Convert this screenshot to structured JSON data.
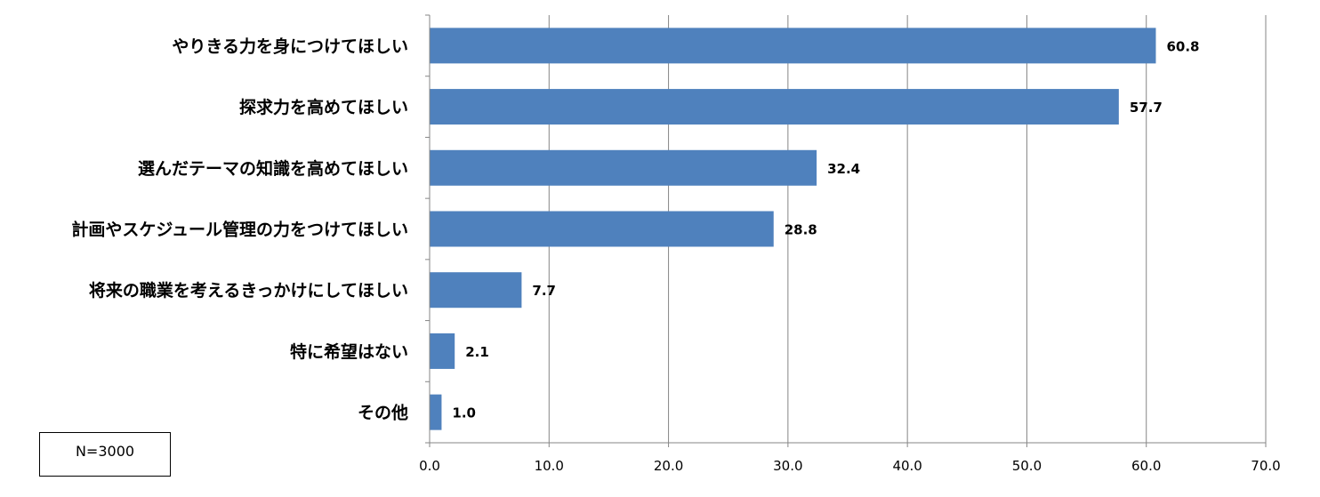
{
  "chart_data": {
    "type": "bar",
    "orientation": "horizontal",
    "categories": [
      "やりきる力を身につけてほしい",
      "探求力を高めてほしい",
      "選んだテーマの知識を高めてほしい",
      "計画やスケジュール管理の力をつけてほしい",
      "将来の職業を考えるきっかけにしてほしい",
      "特に希望はない",
      "その他"
    ],
    "values": [
      60.8,
      57.7,
      32.4,
      28.8,
      7.7,
      2.1,
      1.0
    ],
    "value_labels": [
      "60.8",
      "57.7",
      "32.4",
      "28.8",
      "7.7",
      "2.1",
      "1.0"
    ],
    "xlim": [
      0,
      70
    ],
    "xticks": [
      "0.0",
      "10.0",
      "20.0",
      "30.0",
      "40.0",
      "50.0",
      "60.0",
      "70.0"
    ],
    "grid": "vertical",
    "bar_color": "#4f81bd",
    "grid_color": "#868686",
    "annotation": "N=3000"
  }
}
